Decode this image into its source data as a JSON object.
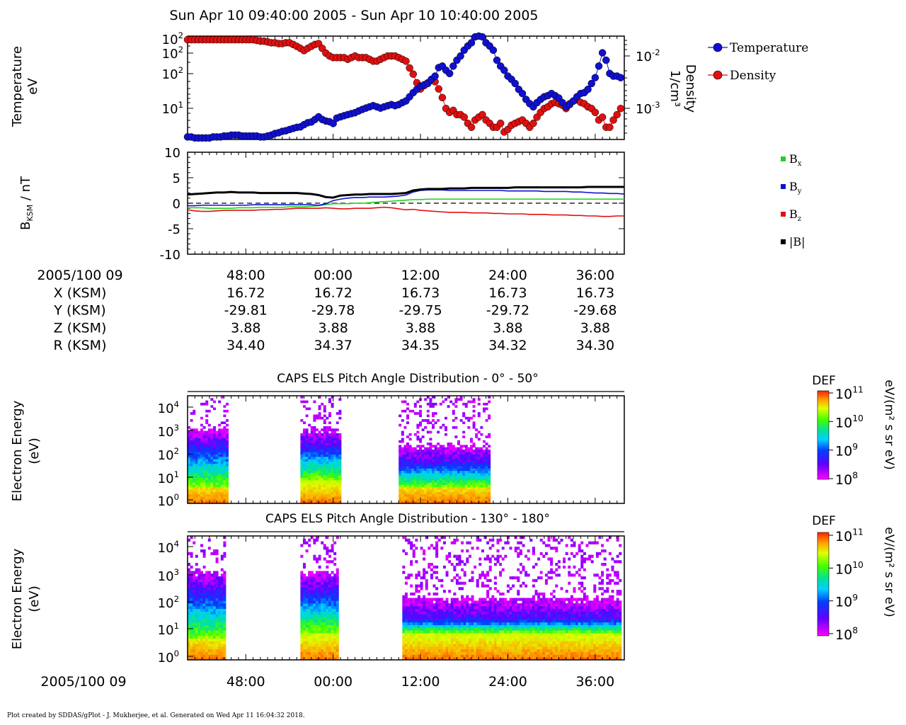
{
  "title": "Sun Apr 10 09:40:00 2005 - Sun Apr 10 10:40:00 2005",
  "footer": "Plot created by SDDAS/gPlot - J. Mukherjee, et al.  Generated on Wed Apr 11 16:04:32 2018.",
  "colors": {
    "temperature": "#1010d0",
    "density": "#e01010",
    "bx": "#20d020",
    "by": "#1010d0",
    "bz": "#e01010",
    "btot": "#000000"
  },
  "time_axis": {
    "t_start_min": 40,
    "t_end_min": 100,
    "tick_minutes": [
      48,
      60,
      72,
      84,
      96
    ],
    "tick_labels": [
      "48:00",
      "00:00",
      "12:00",
      "24:00",
      "36:00"
    ],
    "date_label": "2005/100 09"
  },
  "ephemeris": {
    "rows": [
      {
        "label": "X (KSM)",
        "values": [
          "16.72",
          "16.72",
          "16.73",
          "16.73",
          "16.73"
        ]
      },
      {
        "label": "Y (KSM)",
        "values": [
          "-29.81",
          "-29.78",
          "-29.75",
          "-29.72",
          "-29.68"
        ]
      },
      {
        "label": "Z (KSM)",
        "values": [
          "3.88",
          "3.88",
          "3.88",
          "3.88",
          "3.88"
        ]
      },
      {
        "label": "R (KSM)",
        "values": [
          "34.40",
          "34.37",
          "34.35",
          "34.32",
          "34.30"
        ]
      }
    ]
  },
  "chart_data": [
    {
      "type": "scatter",
      "panel": "moments",
      "ylabel": [
        "Temperature",
        "eV"
      ],
      "y2label": [
        "Density",
        "1/cm³"
      ],
      "y_ticks": [
        {
          "exp": 2,
          "label": "10",
          "sup": "2"
        },
        {
          "exp": 2,
          "label": "10",
          "sup": "2"
        },
        {
          "exp": 2,
          "label": "10",
          "sup": "2"
        },
        {
          "exp": 1,
          "label": "10",
          "sup": "1"
        }
      ],
      "y2_ticks": [
        {
          "label": "10",
          "sup": "-2"
        },
        {
          "label": "10",
          "sup": "-3"
        }
      ],
      "legend": [
        "Temperature",
        "Density"
      ],
      "series": [
        {
          "name": "Temperature",
          "x": [
            40.0,
            40.5,
            41,
            41.5,
            42,
            42.5,
            43,
            43.5,
            44,
            44.5,
            45,
            45.5,
            46,
            46.5,
            47,
            47.5,
            48,
            48.5,
            49,
            49.5,
            50,
            50.5,
            51,
            51.5,
            52,
            52.5,
            53,
            53.5,
            54,
            54.5,
            55,
            55.5,
            56,
            56.5,
            57,
            57.5,
            58,
            58.5,
            59,
            59.5,
            60,
            60.5,
            61,
            61.5,
            62,
            62.5,
            63,
            63.5,
            64,
            64.5,
            65,
            65.5,
            66,
            66.5,
            67,
            67.5,
            68,
            68.5,
            69,
            69.5,
            70,
            70.5,
            71,
            71.5,
            72,
            72.5,
            73,
            73.5,
            74,
            74.5,
            75,
            75.5,
            76,
            76.5,
            77,
            77.5,
            78,
            78.5,
            79,
            79.5,
            80,
            80.5,
            81,
            81.5,
            82,
            82.5,
            83,
            83.5,
            84,
            84.5,
            85,
            85.5,
            86,
            86.5,
            87,
            87.5,
            88,
            88.5,
            89,
            89.5,
            90,
            90.5,
            91,
            91.5,
            92,
            92.5,
            93,
            93.5,
            94,
            94.5,
            95,
            95.5,
            96,
            96.5,
            97,
            97.5,
            98,
            98.5,
            99,
            99.5
          ],
          "y": [
            1.5,
            1.5,
            1.4,
            1.4,
            1.4,
            1.4,
            1.4,
            1.5,
            1.5,
            1.5,
            1.6,
            1.6,
            1.7,
            1.7,
            1.7,
            1.6,
            1.6,
            1.6,
            1.6,
            1.6,
            1.5,
            1.5,
            1.6,
            1.7,
            1.9,
            2.0,
            2.2,
            2.3,
            2.5,
            2.7,
            2.9,
            3.0,
            3.5,
            4.0,
            4.2,
            5.0,
            6.0,
            5.0,
            4.5,
            4.3,
            3.8,
            5.5,
            6.0,
            6.5,
            7.0,
            7.5,
            8.0,
            9.0,
            10,
            11,
            12,
            13,
            12,
            11,
            12,
            13,
            14,
            13,
            14,
            16,
            18,
            24,
            32,
            40,
            50,
            55,
            60,
            80,
            100,
            180,
            200,
            150,
            120,
            200,
            300,
            400,
            600,
            800,
            1000,
            1500,
            1600,
            1500,
            1000,
            800,
            600,
            300,
            200,
            150,
            100,
            80,
            60,
            40,
            30,
            20,
            15,
            12,
            16,
            20,
            24,
            26,
            30,
            26,
            22,
            16,
            12,
            14,
            18,
            24,
            30,
            32,
            40,
            60,
            90,
            200,
            500,
            300,
            120,
            100,
            100,
            90
          ]
        },
        {
          "name": "Density",
          "x": [
            40.0,
            40.5,
            41,
            41.5,
            42,
            42.5,
            43,
            43.5,
            44,
            44.5,
            45,
            45.5,
            46,
            46.5,
            47,
            47.5,
            48,
            48.5,
            49,
            49.5,
            50,
            50.5,
            51,
            51.5,
            52,
            52.5,
            53,
            53.5,
            54,
            54.5,
            55,
            55.5,
            56,
            56.5,
            57,
            57.5,
            58,
            58.5,
            59,
            59.5,
            60,
            60.5,
            61,
            61.5,
            62,
            62.5,
            63,
            63.5,
            64,
            64.5,
            65,
            65.5,
            66,
            66.5,
            67,
            67.5,
            68,
            68.5,
            69,
            69.5,
            70,
            70.5,
            71,
            71.5,
            72,
            72.5,
            73,
            73.5,
            74,
            74.5,
            75,
            75.5,
            76,
            76.5,
            77,
            77.5,
            78,
            78.5,
            79,
            79.5,
            80,
            80.5,
            81,
            81.5,
            82,
            82.5,
            83,
            83.5,
            84,
            84.5,
            85,
            85.5,
            86,
            86.5,
            87,
            87.5,
            88,
            88.5,
            89,
            89.5,
            90,
            90.5,
            91,
            91.5,
            92,
            92.5,
            93,
            93.5,
            94,
            94.5,
            95,
            95.5,
            96,
            96.5,
            97,
            97.5,
            98,
            98.5,
            99,
            99.5
          ],
          "y": [
            0.03,
            0.03,
            0.03,
            0.03,
            0.03,
            0.03,
            0.03,
            0.03,
            0.03,
            0.03,
            0.03,
            0.03,
            0.03,
            0.03,
            0.03,
            0.03,
            0.03,
            0.03,
            0.03,
            0.029,
            0.028,
            0.028,
            0.027,
            0.026,
            0.026,
            0.025,
            0.025,
            0.026,
            0.026,
            0.024,
            0.022,
            0.02,
            0.018,
            0.02,
            0.022,
            0.024,
            0.025,
            0.02,
            0.016,
            0.014,
            0.013,
            0.013,
            0.013,
            0.013,
            0.012,
            0.013,
            0.014,
            0.013,
            0.013,
            0.013,
            0.012,
            0.011,
            0.011,
            0.012,
            0.013,
            0.014,
            0.014,
            0.014,
            0.013,
            0.012,
            0.011,
            0.008,
            0.006,
            0.004,
            0.003,
            0.0035,
            0.004,
            0.0045,
            0.0042,
            0.003,
            0.002,
            0.0012,
            0.001,
            0.0011,
            0.0009,
            0.0009,
            0.0008,
            0.0006,
            0.0005,
            0.0007,
            0.0008,
            0.0009,
            0.0007,
            0.0006,
            0.0005,
            0.0005,
            0.0006,
            0.0004,
            0.00045,
            0.00055,
            0.0006,
            0.00065,
            0.0007,
            0.0006,
            0.0005,
            0.0006,
            0.0008,
            0.001,
            0.0012,
            0.0013,
            0.0015,
            0.0016,
            0.0015,
            0.0014,
            0.0012,
            0.0015,
            0.0017,
            0.0018,
            0.0016,
            0.0015,
            0.0013,
            0.0012,
            0.001,
            0.0007,
            0.0008,
            0.0005,
            0.0005,
            0.0007,
            0.0009,
            0.0012
          ]
        }
      ]
    },
    {
      "type": "line",
      "panel": "magnetic_field",
      "ylabel": "B",
      "ylabel_sub": "KSM",
      "ylabel_unit": " / nT",
      "ylim": [
        -10,
        10
      ],
      "y_ticks": [
        -10,
        -5,
        0,
        5,
        10
      ],
      "legend": [
        {
          "label": "B",
          "sub": "x"
        },
        {
          "label": "B",
          "sub": "y"
        },
        {
          "label": "B",
          "sub": "z"
        },
        {
          "label": "|B|",
          "sub": ""
        }
      ],
      "x": [
        40,
        41,
        42,
        43,
        44,
        45,
        46,
        47,
        48,
        49,
        50,
        51,
        52,
        53,
        54,
        55,
        56,
        57,
        58,
        59,
        60,
        61,
        62,
        63,
        64,
        65,
        66,
        67,
        68,
        69,
        70,
        71,
        72,
        73,
        74,
        75,
        76,
        77,
        78,
        79,
        80,
        81,
        82,
        83,
        84,
        85,
        86,
        87,
        88,
        89,
        90,
        91,
        92,
        93,
        94,
        95,
        96,
        97,
        98,
        99,
        100
      ],
      "series": [
        {
          "name": "Bx",
          "values": [
            -0.9,
            -0.9,
            -0.9,
            -1.0,
            -1.0,
            -1.0,
            -1.0,
            -0.9,
            -0.9,
            -0.9,
            -0.8,
            -0.8,
            -0.8,
            -0.8,
            -0.7,
            -0.7,
            -0.7,
            -0.6,
            -0.5,
            -0.3,
            -0.1,
            -0.1,
            -0.1,
            0.0,
            0.0,
            0.1,
            0.2,
            0.3,
            0.4,
            0.5,
            0.6,
            0.7,
            0.7,
            0.8,
            0.8,
            0.8,
            0.8,
            0.8,
            0.8,
            0.8,
            0.8,
            0.8,
            0.8,
            0.8,
            0.8,
            0.8,
            0.8,
            0.8,
            0.8,
            0.8,
            0.8,
            0.8,
            0.8,
            0.8,
            0.8,
            0.8,
            0.8,
            0.8,
            0.8,
            0.8,
            0.8
          ]
        },
        {
          "name": "By",
          "values": [
            -0.5,
            -0.5,
            -0.4,
            -0.4,
            -0.4,
            -0.4,
            -0.4,
            -0.4,
            -0.4,
            -0.3,
            -0.3,
            -0.3,
            -0.3,
            -0.3,
            -0.3,
            -0.3,
            -0.3,
            -0.3,
            -0.4,
            -0.1,
            0.5,
            0.8,
            1.0,
            1.1,
            1.1,
            1.2,
            1.2,
            1.2,
            1.3,
            1.4,
            1.6,
            2.2,
            2.5,
            2.6,
            2.6,
            2.6,
            2.5,
            2.5,
            2.5,
            2.5,
            2.5,
            2.5,
            2.5,
            2.5,
            2.4,
            2.4,
            2.4,
            2.4,
            2.4,
            2.3,
            2.3,
            2.3,
            2.3,
            2.2,
            2.2,
            2.1,
            2.0,
            2.0,
            1.9,
            1.9,
            1.8
          ]
        },
        {
          "name": "Bz",
          "values": [
            -1.3,
            -1.5,
            -1.6,
            -1.6,
            -1.5,
            -1.4,
            -1.4,
            -1.4,
            -1.4,
            -1.4,
            -1.3,
            -1.3,
            -1.2,
            -1.2,
            -1.1,
            -1.0,
            -1.0,
            -1.0,
            -1.0,
            -0.9,
            -1.0,
            -1.1,
            -1.1,
            -1.0,
            -1.0,
            -1.0,
            -0.9,
            -0.8,
            -0.9,
            -1.1,
            -1.3,
            -1.2,
            -1.4,
            -1.5,
            -1.6,
            -1.7,
            -1.8,
            -1.8,
            -1.8,
            -1.9,
            -1.9,
            -1.9,
            -2.0,
            -2.0,
            -2.1,
            -2.1,
            -2.1,
            -2.2,
            -2.2,
            -2.2,
            -2.3,
            -2.3,
            -2.3,
            -2.4,
            -2.4,
            -2.5,
            -2.5,
            -2.6,
            -2.6,
            -2.5,
            -2.5
          ]
        },
        {
          "name": "|B|",
          "values": [
            1.7,
            1.8,
            1.9,
            2.0,
            2.1,
            2.1,
            2.2,
            2.1,
            2.1,
            2.1,
            2.0,
            2.0,
            2.0,
            2.0,
            2.0,
            2.0,
            1.9,
            1.8,
            1.6,
            1.2,
            1.1,
            1.5,
            1.6,
            1.7,
            1.7,
            1.8,
            1.8,
            1.8,
            1.8,
            1.9,
            2.0,
            2.5,
            2.7,
            2.8,
            2.8,
            2.8,
            2.9,
            2.9,
            2.9,
            3.0,
            3.0,
            3.0,
            3.0,
            3.0,
            3.0,
            3.1,
            3.1,
            3.1,
            3.1,
            3.1,
            3.1,
            3.1,
            3.1,
            3.1,
            3.1,
            3.2,
            3.2,
            3.2,
            3.2,
            3.2,
            3.2
          ]
        }
      ]
    },
    {
      "type": "heatmap",
      "panel": "els_pad_low",
      "title": "CAPS ELS Pitch Angle Distribution - 0° - 50°",
      "ylabel": [
        "Electron Energy",
        "(eV)"
      ],
      "y_ticks": [
        {
          "label": "10",
          "sup": "4"
        },
        {
          "label": "10",
          "sup": "3"
        },
        {
          "label": "10",
          "sup": "2"
        },
        {
          "label": "10",
          "sup": "1"
        },
        {
          "label": "10",
          "sup": "0"
        }
      ],
      "colorbar": {
        "title": "DEF",
        "unit": "eV/(m² s sr eV)",
        "ticks": [
          {
            "label": "10",
            "sup": "11"
          },
          {
            "label": "10",
            "sup": "10"
          },
          {
            "label": "10",
            "sup": "9"
          },
          {
            "label": "10",
            "sup": "8"
          }
        ],
        "log_range": [
          8,
          11
        ]
      },
      "data_windows_min": [
        [
          40.0,
          45.5
        ],
        [
          55.5,
          61.0
        ],
        [
          69.0,
          81.5
        ]
      ],
      "core_top_log_energy": [
        2.2,
        2.2,
        1.5
      ],
      "hot_top_log_energy": [
        0.5,
        0.8,
        0.5
      ]
    },
    {
      "type": "heatmap",
      "panel": "els_pad_high",
      "title": "CAPS ELS Pitch Angle Distribution - 130° - 180°",
      "ylabel": [
        "Electron Energy",
        "(eV)"
      ],
      "y_ticks": [
        {
          "label": "10",
          "sup": "4"
        },
        {
          "label": "10",
          "sup": "3"
        },
        {
          "label": "10",
          "sup": "2"
        },
        {
          "label": "10",
          "sup": "1"
        },
        {
          "label": "10",
          "sup": "0"
        }
      ],
      "colorbar": {
        "title": "DEF",
        "unit": "eV/(m² s sr eV)",
        "ticks": [
          {
            "label": "10",
            "sup": "11"
          },
          {
            "label": "10",
            "sup": "10"
          },
          {
            "label": "10",
            "sup": "9"
          },
          {
            "label": "10",
            "sup": "8"
          }
        ],
        "log_range": [
          8,
          11
        ]
      },
      "data_windows_min": [
        [
          40.0,
          45.0
        ],
        [
          55.5,
          60.5
        ],
        [
          69.5,
          99.5
        ]
      ],
      "core_top_log_energy": [
        2.3,
        2.3,
        1.3
      ],
      "hot_top_log_energy": [
        0.6,
        0.8,
        0.8
      ]
    }
  ]
}
